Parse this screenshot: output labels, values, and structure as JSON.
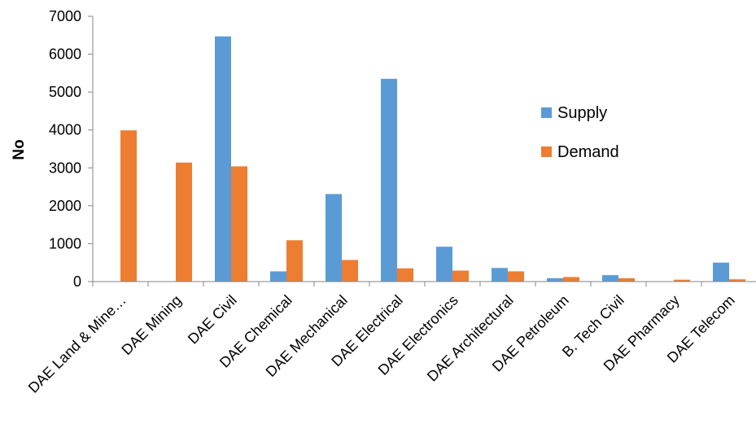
{
  "chart_data": {
    "type": "bar",
    "ylabel": "No",
    "xlabel": "",
    "ylim": [
      0,
      7000
    ],
    "yticks": [
      0,
      1000,
      2000,
      3000,
      4000,
      5000,
      6000,
      7000
    ],
    "grid": false,
    "legend_position": "right",
    "categories": [
      "DAE Land & Mine…",
      "DAE Mining",
      "DAE Civil",
      "DAE Chemical",
      "DAE Mechanical",
      "DAE Electrical",
      "DAE Electronics",
      "DAE Architectural",
      "DAE Petroleum",
      "B. Tech Civil",
      "DAE Pharmacy",
      "DAE Telecom"
    ],
    "series": [
      {
        "name": "Supply",
        "color": "#5B9BD5",
        "values": [
          0,
          0,
          6470,
          270,
          2310,
          5350,
          920,
          360,
          90,
          170,
          0,
          500
        ]
      },
      {
        "name": "Demand",
        "color": "#ED7D31",
        "values": [
          3990,
          3140,
          3040,
          1090,
          570,
          350,
          290,
          270,
          120,
          90,
          50,
          60
        ]
      }
    ]
  }
}
